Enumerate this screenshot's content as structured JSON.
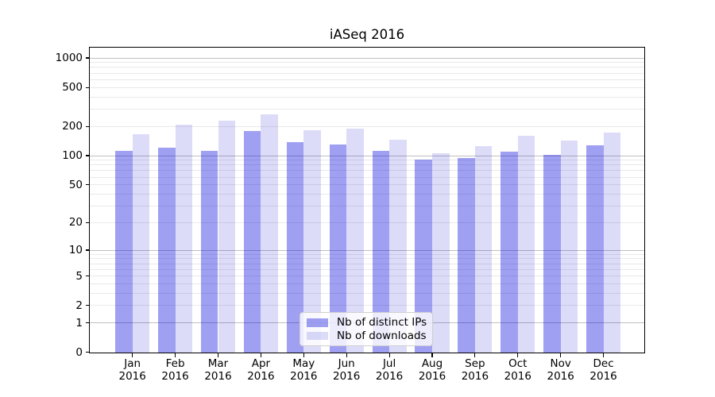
{
  "chart_data": {
    "type": "bar",
    "title": "iASeq 2016",
    "categories": [
      "Jan",
      "Feb",
      "Mar",
      "Apr",
      "May",
      "Jun",
      "Jul",
      "Aug",
      "Sep",
      "Oct",
      "Nov",
      "Dec"
    ],
    "x_year": "2016",
    "series": [
      {
        "name": "Nb of distinct IPs",
        "color": "rgba(5,5,221,0.38)",
        "values": [
          112,
          120,
          112,
          180,
          139,
          130,
          113,
          91,
          95,
          111,
          103,
          127
        ]
      },
      {
        "name": "Nb of downloads",
        "color": "rgba(22,22,208,0.15)",
        "values": [
          167,
          208,
          227,
          265,
          182,
          191,
          147,
          105,
          126,
          160,
          142,
          172
        ]
      }
    ],
    "yscale": "log1p",
    "ylim": [
      0,
      1275
    ],
    "yticks": [
      0,
      1,
      2,
      5,
      10,
      20,
      50,
      100,
      200,
      500,
      1000
    ],
    "grid": true,
    "legend_position": "lower center inside"
  },
  "colors": {
    "bar_ips": "rgba(5,5,221,0.38)",
    "bar_downloads": "rgba(22,22,208,0.15)",
    "grid_minor": "#e9e9e9",
    "grid_major": "#bfbfbf",
    "axis": "#000000",
    "background": "#ffffff"
  }
}
